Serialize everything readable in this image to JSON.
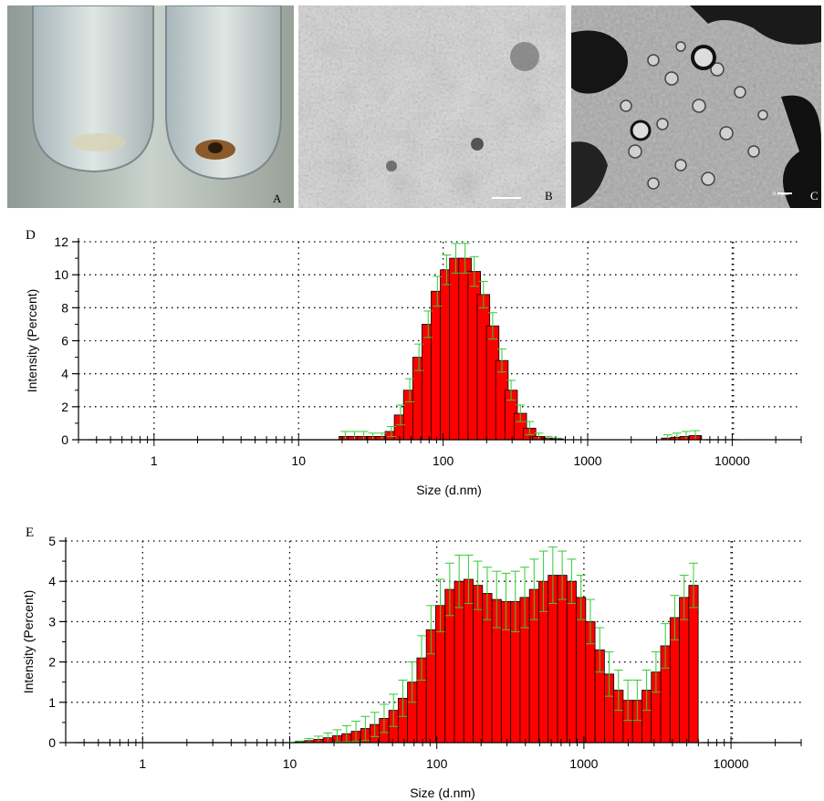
{
  "panels": {
    "a_label": "A",
    "b_label": "B",
    "c_label": "C",
    "d_label": "D",
    "e_label": "E",
    "c_scalebar_text": "0.1 μm"
  },
  "colors": {
    "bar": "#ff0000",
    "bar_edge": "#000000",
    "error": "#33cc33"
  },
  "chart_data": [
    {
      "type": "bar",
      "panel": "D",
      "xlabel": "Size (d.nm)",
      "ylabel": "Intensity (Percent)",
      "xscale": "log",
      "xlim": [
        0.3,
        30000
      ],
      "ylim": [
        0,
        12
      ],
      "xticks": [
        1,
        10,
        100,
        1000,
        10000
      ],
      "xtick_labels": [
        "1",
        "10",
        "100",
        "1000",
        "10000"
      ],
      "yticks": [
        0,
        2,
        4,
        6,
        8,
        10,
        12
      ],
      "ytick_labels": [
        "0",
        "2",
        "4",
        "6",
        "8",
        "10",
        "12"
      ],
      "grid": true,
      "x": [
        21.04,
        24.36,
        28.21,
        32.67,
        37.84,
        43.82,
        50.75,
        58.77,
        68.06,
        78.82,
        91.28,
        105.7,
        122.4,
        141.8,
        164.2,
        190.1,
        220.2,
        255.0,
        295.3,
        342.0,
        396.1,
        458.7,
        531.2,
        615.1,
        712.4,
        3580,
        4145,
        4801,
        5560
      ],
      "values": [
        0.2,
        0.2,
        0.2,
        0.2,
        0.2,
        0.5,
        1.5,
        3.0,
        5.0,
        7.0,
        9.0,
        10.3,
        11.0,
        11.0,
        10.2,
        8.8,
        6.9,
        4.8,
        3.0,
        1.6,
        0.7,
        0.2,
        0.1,
        0.05,
        0.0,
        0.1,
        0.15,
        0.2,
        0.25
      ],
      "errors": [
        0.3,
        0.3,
        0.3,
        0.2,
        0.2,
        0.3,
        0.6,
        0.7,
        0.8,
        0.8,
        0.9,
        0.9,
        0.9,
        0.9,
        0.9,
        0.8,
        0.8,
        0.7,
        0.6,
        0.5,
        0.4,
        0.2,
        0.1,
        0.05,
        0.0,
        0.2,
        0.25,
        0.3,
        0.3
      ]
    },
    {
      "type": "bar",
      "panel": "E",
      "xlabel": "Size (d.nm)",
      "ylabel": "Intensity (Percent)",
      "xscale": "log",
      "xlim": [
        0.3,
        30000
      ],
      "ylim": [
        0,
        5
      ],
      "xticks": [
        1,
        10,
        100,
        1000,
        10000
      ],
      "xtick_labels": [
        "1",
        "10",
        "100",
        "1000",
        "10000"
      ],
      "yticks": [
        0,
        1,
        2,
        3,
        4,
        5
      ],
      "ytick_labels": [
        "0",
        "1",
        "2",
        "3",
        "4",
        "5"
      ],
      "grid": true,
      "x": [
        11.7,
        13.54,
        15.69,
        18.17,
        21.04,
        24.36,
        28.21,
        32.67,
        37.84,
        43.82,
        50.75,
        58.77,
        68.06,
        78.82,
        91.28,
        105.7,
        122.4,
        141.8,
        164.2,
        190.1,
        220.2,
        255.0,
        295.3,
        342.0,
        396.1,
        458.7,
        531.2,
        615.1,
        712.4,
        825.0,
        955.4,
        1106,
        1281,
        1484,
        1718,
        1990,
        2305,
        2669,
        3091,
        3580,
        4145,
        4801,
        5560
      ],
      "values": [
        0.02,
        0.05,
        0.08,
        0.12,
        0.17,
        0.22,
        0.28,
        0.35,
        0.45,
        0.6,
        0.8,
        1.1,
        1.5,
        2.1,
        2.8,
        3.4,
        3.8,
        4.0,
        4.05,
        3.9,
        3.7,
        3.55,
        3.5,
        3.5,
        3.6,
        3.8,
        4.0,
        4.15,
        4.15,
        4.0,
        3.6,
        3.0,
        2.3,
        1.7,
        1.3,
        1.05,
        1.05,
        1.3,
        1.75,
        2.4,
        3.1,
        3.6,
        3.9
      ],
      "errors": [
        0.02,
        0.05,
        0.08,
        0.12,
        0.15,
        0.2,
        0.25,
        0.3,
        0.3,
        0.35,
        0.4,
        0.45,
        0.5,
        0.55,
        0.6,
        0.65,
        0.65,
        0.65,
        0.6,
        0.6,
        0.65,
        0.7,
        0.7,
        0.75,
        0.75,
        0.75,
        0.75,
        0.7,
        0.6,
        0.55,
        0.55,
        0.55,
        0.55,
        0.55,
        0.5,
        0.5,
        0.5,
        0.5,
        0.5,
        0.55,
        0.55,
        0.55,
        0.55
      ]
    }
  ]
}
